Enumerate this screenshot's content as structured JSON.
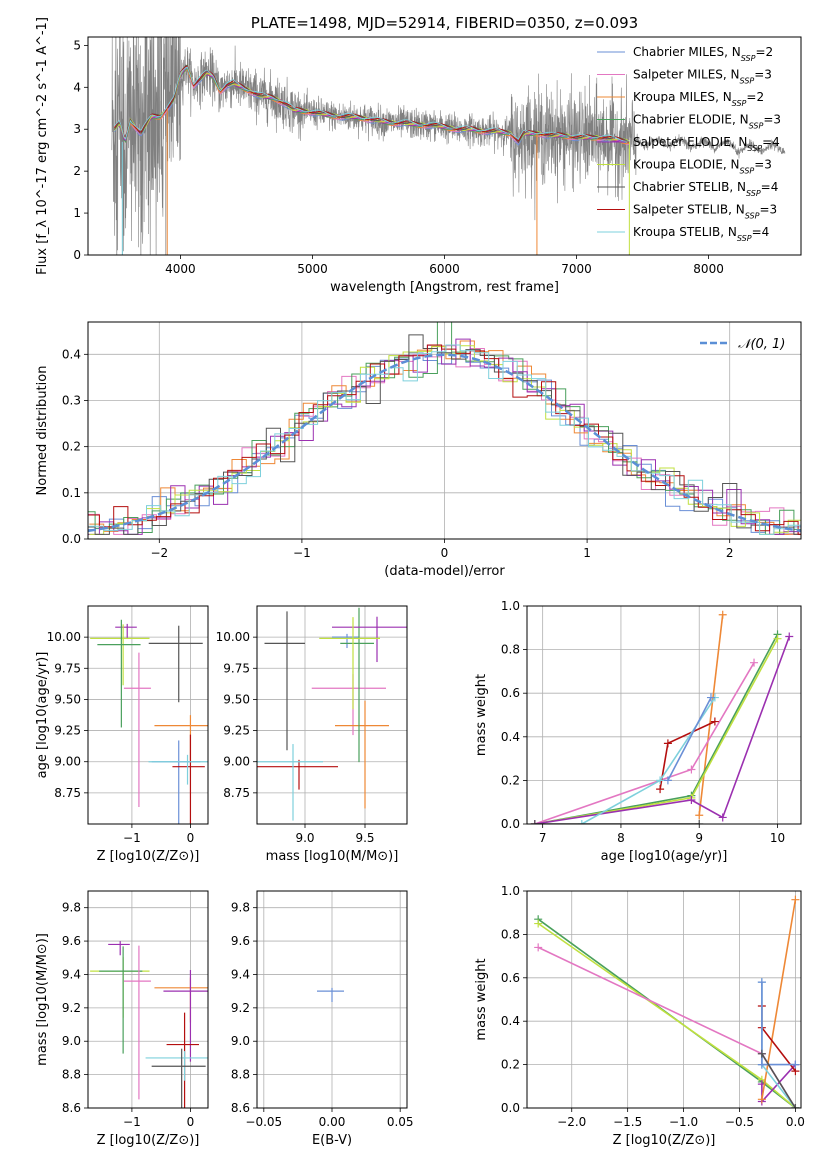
{
  "colors": [
    "#6a8fd6",
    "#e377c2",
    "#ee8836",
    "#4aa05c",
    "#9b30b0",
    "#c0e040",
    "#555555",
    "#b40f0f",
    "#7ed0dc"
  ],
  "chart_data": [
    {
      "type": "line",
      "title": "PLATE=1498, MJD=52914, FIBERID=0350, z=0.093",
      "xlabel": "wavelength [Angstrom, rest frame]",
      "ylabel": "Flux [f_λ 10^-17 erg cm^-2 s^-1 A^-1]",
      "xlim": [
        3300,
        8700
      ],
      "ylim": [
        0,
        5.2
      ],
      "xticks": [
        4000,
        5000,
        6000,
        7000,
        8000
      ],
      "yticks": [
        0,
        1,
        2,
        3,
        4,
        5
      ],
      "legend_position": "top-right",
      "legend": [
        {
          "name": "Chabrier MILES",
          "n": "2"
        },
        {
          "name": "Salpeter MILES",
          "n": "3"
        },
        {
          "name": "Kroupa MILES",
          "n": "2"
        },
        {
          "name": "Chabrier ELODIE",
          "n": "3"
        },
        {
          "name": "Salpeter ELODIE",
          "n": "4"
        },
        {
          "name": "Kroupa ELODIE",
          "n": "3"
        },
        {
          "name": "Chabrier STELIB",
          "n": "4"
        },
        {
          "name": "Salpeter STELIB",
          "n": "3"
        },
        {
          "name": "Kroupa STELIB",
          "n": "4"
        }
      ],
      "model_continuum": {
        "x": [
          3500,
          3540,
          3580,
          3620,
          3700,
          3780,
          3850,
          3900,
          3950,
          4000,
          4050,
          4100,
          4150,
          4200,
          4250,
          4300,
          4350,
          4400,
          4500,
          4600,
          4700,
          4800,
          4860,
          4900,
          5000,
          5100,
          5200,
          5300,
          5400,
          5500,
          5600,
          5700,
          5800,
          5900,
          6000,
          6100,
          6200,
          6300,
          6400,
          6500,
          6560,
          6600,
          6700,
          6800,
          6900,
          7000,
          7100,
          7200,
          7300,
          7400
        ],
        "y": [
          3.0,
          3.15,
          2.7,
          3.2,
          2.9,
          3.3,
          3.3,
          3.5,
          3.7,
          4.3,
          4.5,
          4.05,
          4.2,
          4.35,
          4.25,
          3.9,
          4.05,
          4.1,
          3.95,
          3.8,
          3.75,
          3.6,
          3.45,
          3.45,
          3.4,
          3.35,
          3.3,
          3.3,
          3.25,
          3.2,
          3.15,
          3.15,
          3.1,
          3.1,
          3.05,
          3.0,
          3.0,
          2.95,
          2.95,
          2.9,
          2.7,
          2.9,
          2.9,
          2.85,
          2.85,
          2.8,
          2.8,
          2.8,
          2.75,
          2.7
        ]
      },
      "spectrum_color": "#808080"
    },
    {
      "type": "line",
      "xlabel": "(data-model)/error",
      "ylabel": "Normed distribution",
      "xlim": [
        -2.5,
        2.5
      ],
      "ylim": [
        0,
        0.47
      ],
      "xticks": [
        -2,
        -1,
        0,
        1,
        2
      ],
      "yticks": [
        0.0,
        0.1,
        0.2,
        0.3,
        0.4
      ],
      "grid": true,
      "legend_position": "top-right",
      "reference_label": "𝒩(0, 1)",
      "reference_color": "#5b8fd6"
    },
    {
      "type": "scatter",
      "xlabel": "Z [log10(Z/Z⊙)]",
      "ylabel": "age [log10(age/yr)]",
      "xlim": [
        -1.75,
        0.3
      ],
      "ylim": [
        8.5,
        10.25
      ],
      "xticks": [
        -1,
        0
      ],
      "yticks": [
        8.75,
        9.0,
        9.25,
        9.5,
        9.75,
        10.0
      ],
      "grid": true,
      "points": [
        {
          "x": -1.08,
          "y": 10.08,
          "c": 4
        },
        {
          "x": -1.15,
          "y": 9.99,
          "c": 5
        },
        {
          "x": -1.18,
          "y": 9.94,
          "c": 3
        },
        {
          "x": -0.88,
          "y": 9.59,
          "c": 1
        },
        {
          "x": 0.0,
          "y": 9.29,
          "c": 2
        },
        {
          "x": -0.2,
          "y": 9.0,
          "c": 0
        },
        {
          "x": 0.0,
          "y": 8.96,
          "c": 7
        },
        {
          "x": -0.05,
          "y": 9.0,
          "c": 8
        },
        {
          "x": -0.2,
          "y": 9.95,
          "c": 6
        }
      ]
    },
    {
      "type": "scatter",
      "xlabel": "mass [log10(M/M⊙)]",
      "ylabel": "",
      "xlim": [
        8.6,
        9.85
      ],
      "ylim": [
        8.5,
        10.25
      ],
      "xticks": [
        9.0,
        9.5
      ],
      "yticks": [
        8.75,
        9.0,
        9.25,
        9.5,
        9.75,
        10.0
      ],
      "grid": true,
      "points": [
        {
          "x": 9.35,
          "y": 10.0,
          "c": 0
        },
        {
          "x": 9.4,
          "y": 9.59,
          "c": 1
        },
        {
          "x": 9.5,
          "y": 9.29,
          "c": 2
        },
        {
          "x": 9.45,
          "y": 9.95,
          "c": 3
        },
        {
          "x": 9.6,
          "y": 10.08,
          "c": 4
        },
        {
          "x": 9.4,
          "y": 9.99,
          "c": 5
        },
        {
          "x": 8.85,
          "y": 9.95,
          "c": 6
        },
        {
          "x": 8.95,
          "y": 8.96,
          "c": 7
        },
        {
          "x": 8.9,
          "y": 9.0,
          "c": 8
        }
      ]
    },
    {
      "type": "line",
      "xlabel": "age [log10(age/yr)]",
      "ylabel": "mass weight",
      "xlim": [
        6.8,
        10.3
      ],
      "ylim": [
        0,
        1.0
      ],
      "xticks": [
        7,
        8,
        9,
        10
      ],
      "yticks": [
        0.0,
        0.2,
        0.4,
        0.6,
        0.8,
        1.0
      ],
      "grid": true,
      "series": [
        {
          "c": 2,
          "x": [
            9.0,
            9.3
          ],
          "y": [
            0.04,
            0.96
          ]
        },
        {
          "c": 3,
          "x": [
            6.9,
            8.9,
            10.0
          ],
          "y": [
            0.0,
            0.13,
            0.87
          ]
        },
        {
          "c": 5,
          "x": [
            6.9,
            8.9,
            10.0
          ],
          "y": [
            0.0,
            0.12,
            0.85
          ]
        },
        {
          "c": 1,
          "x": [
            6.9,
            8.9,
            9.7
          ],
          "y": [
            0.0,
            0.25,
            0.74
          ]
        },
        {
          "c": 4,
          "x": [
            6.9,
            8.9,
            9.3,
            10.15
          ],
          "y": [
            0.0,
            0.11,
            0.03,
            0.86
          ]
        },
        {
          "c": 7,
          "x": [
            8.5,
            8.6,
            9.2
          ],
          "y": [
            0.16,
            0.37,
            0.47
          ]
        },
        {
          "c": 8,
          "x": [
            7.5,
            8.5,
            9.2
          ],
          "y": [
            0.0,
            0.2,
            0.58
          ]
        },
        {
          "c": 0,
          "x": [
            8.6,
            9.15
          ],
          "y": [
            0.2,
            0.58
          ]
        },
        {
          "c": 6,
          "x": [
            6.9,
            9.0
          ],
          "y": [
            0.0,
            0.0
          ]
        }
      ]
    },
    {
      "type": "scatter",
      "xlabel": "Z [log10(Z/Z⊙)]",
      "ylabel": "mass [log10(M/M⊙)]",
      "xlim": [
        -1.75,
        0.3
      ],
      "ylim": [
        8.6,
        9.9
      ],
      "xticks": [
        -1,
        0
      ],
      "yticks": [
        8.6,
        8.8,
        9.0,
        9.2,
        9.4,
        9.6,
        9.8
      ],
      "grid": true,
      "points": [
        {
          "x": -1.2,
          "y": 9.58,
          "c": 4
        },
        {
          "x": -1.15,
          "y": 9.42,
          "c": 5
        },
        {
          "x": -1.15,
          "y": 9.42,
          "c": 3
        },
        {
          "x": -0.88,
          "y": 9.36,
          "c": 1
        },
        {
          "x": 0.0,
          "y": 9.32,
          "c": 2
        },
        {
          "x": 0.0,
          "y": 9.3,
          "c": 4
        },
        {
          "x": -0.1,
          "y": 8.98,
          "c": 7
        },
        {
          "x": -0.1,
          "y": 8.9,
          "c": 8
        },
        {
          "x": -0.15,
          "y": 8.85,
          "c": 6
        }
      ]
    },
    {
      "type": "scatter",
      "xlabel": "E(B-V)",
      "ylabel": "",
      "xlim": [
        -0.055,
        0.055
      ],
      "ylim": [
        8.6,
        9.9
      ],
      "xticks": [
        -0.05,
        0.0,
        0.05
      ],
      "yticks": [
        8.6,
        8.8,
        9.0,
        9.2,
        9.4,
        9.6,
        9.8
      ],
      "grid": true,
      "points": [
        {
          "x": 0.0,
          "y": 9.3,
          "c": 0
        }
      ]
    },
    {
      "type": "line",
      "xlabel": "Z [log10(Z/Z⊙)]",
      "ylabel": "mass weight",
      "xlim": [
        -2.4,
        0.05
      ],
      "ylim": [
        0,
        1.0
      ],
      "xticks": [
        -2.0,
        -1.5,
        -1.0,
        -0.5,
        0.0
      ],
      "yticks": [
        0.0,
        0.2,
        0.4,
        0.6,
        0.8,
        1.0
      ],
      "grid": true,
      "series": [
        {
          "c": 3,
          "x": [
            -2.3,
            -0.3,
            0.0
          ],
          "y": [
            0.87,
            0.12,
            0.0
          ]
        },
        {
          "c": 5,
          "x": [
            -2.3,
            -0.3,
            0.0
          ],
          "y": [
            0.85,
            0.13,
            0.0
          ]
        },
        {
          "c": 1,
          "x": [
            -2.3,
            -0.3,
            0.0
          ],
          "y": [
            0.74,
            0.25,
            0.0
          ]
        },
        {
          "c": 4,
          "x": [
            -0.3,
            -0.3,
            0.0
          ],
          "y": [
            0.11,
            0.03,
            0.2
          ]
        },
        {
          "c": 2,
          "x": [
            -0.3,
            0.0
          ],
          "y": [
            0.04,
            0.96
          ]
        },
        {
          "c": 7,
          "x": [
            -0.3,
            -0.3,
            0.0
          ],
          "y": [
            0.47,
            0.37,
            0.17
          ]
        },
        {
          "c": 8,
          "x": [
            -0.3,
            -0.3,
            0.0
          ],
          "y": [
            0.58,
            0.2,
            0.0
          ]
        },
        {
          "c": 0,
          "x": [
            -0.3,
            -0.3,
            0.0
          ],
          "y": [
            0.58,
            0.2,
            0.2
          ]
        },
        {
          "c": 6,
          "x": [
            -0.3,
            0.0
          ],
          "y": [
            0.25,
            0.0
          ]
        }
      ]
    }
  ]
}
